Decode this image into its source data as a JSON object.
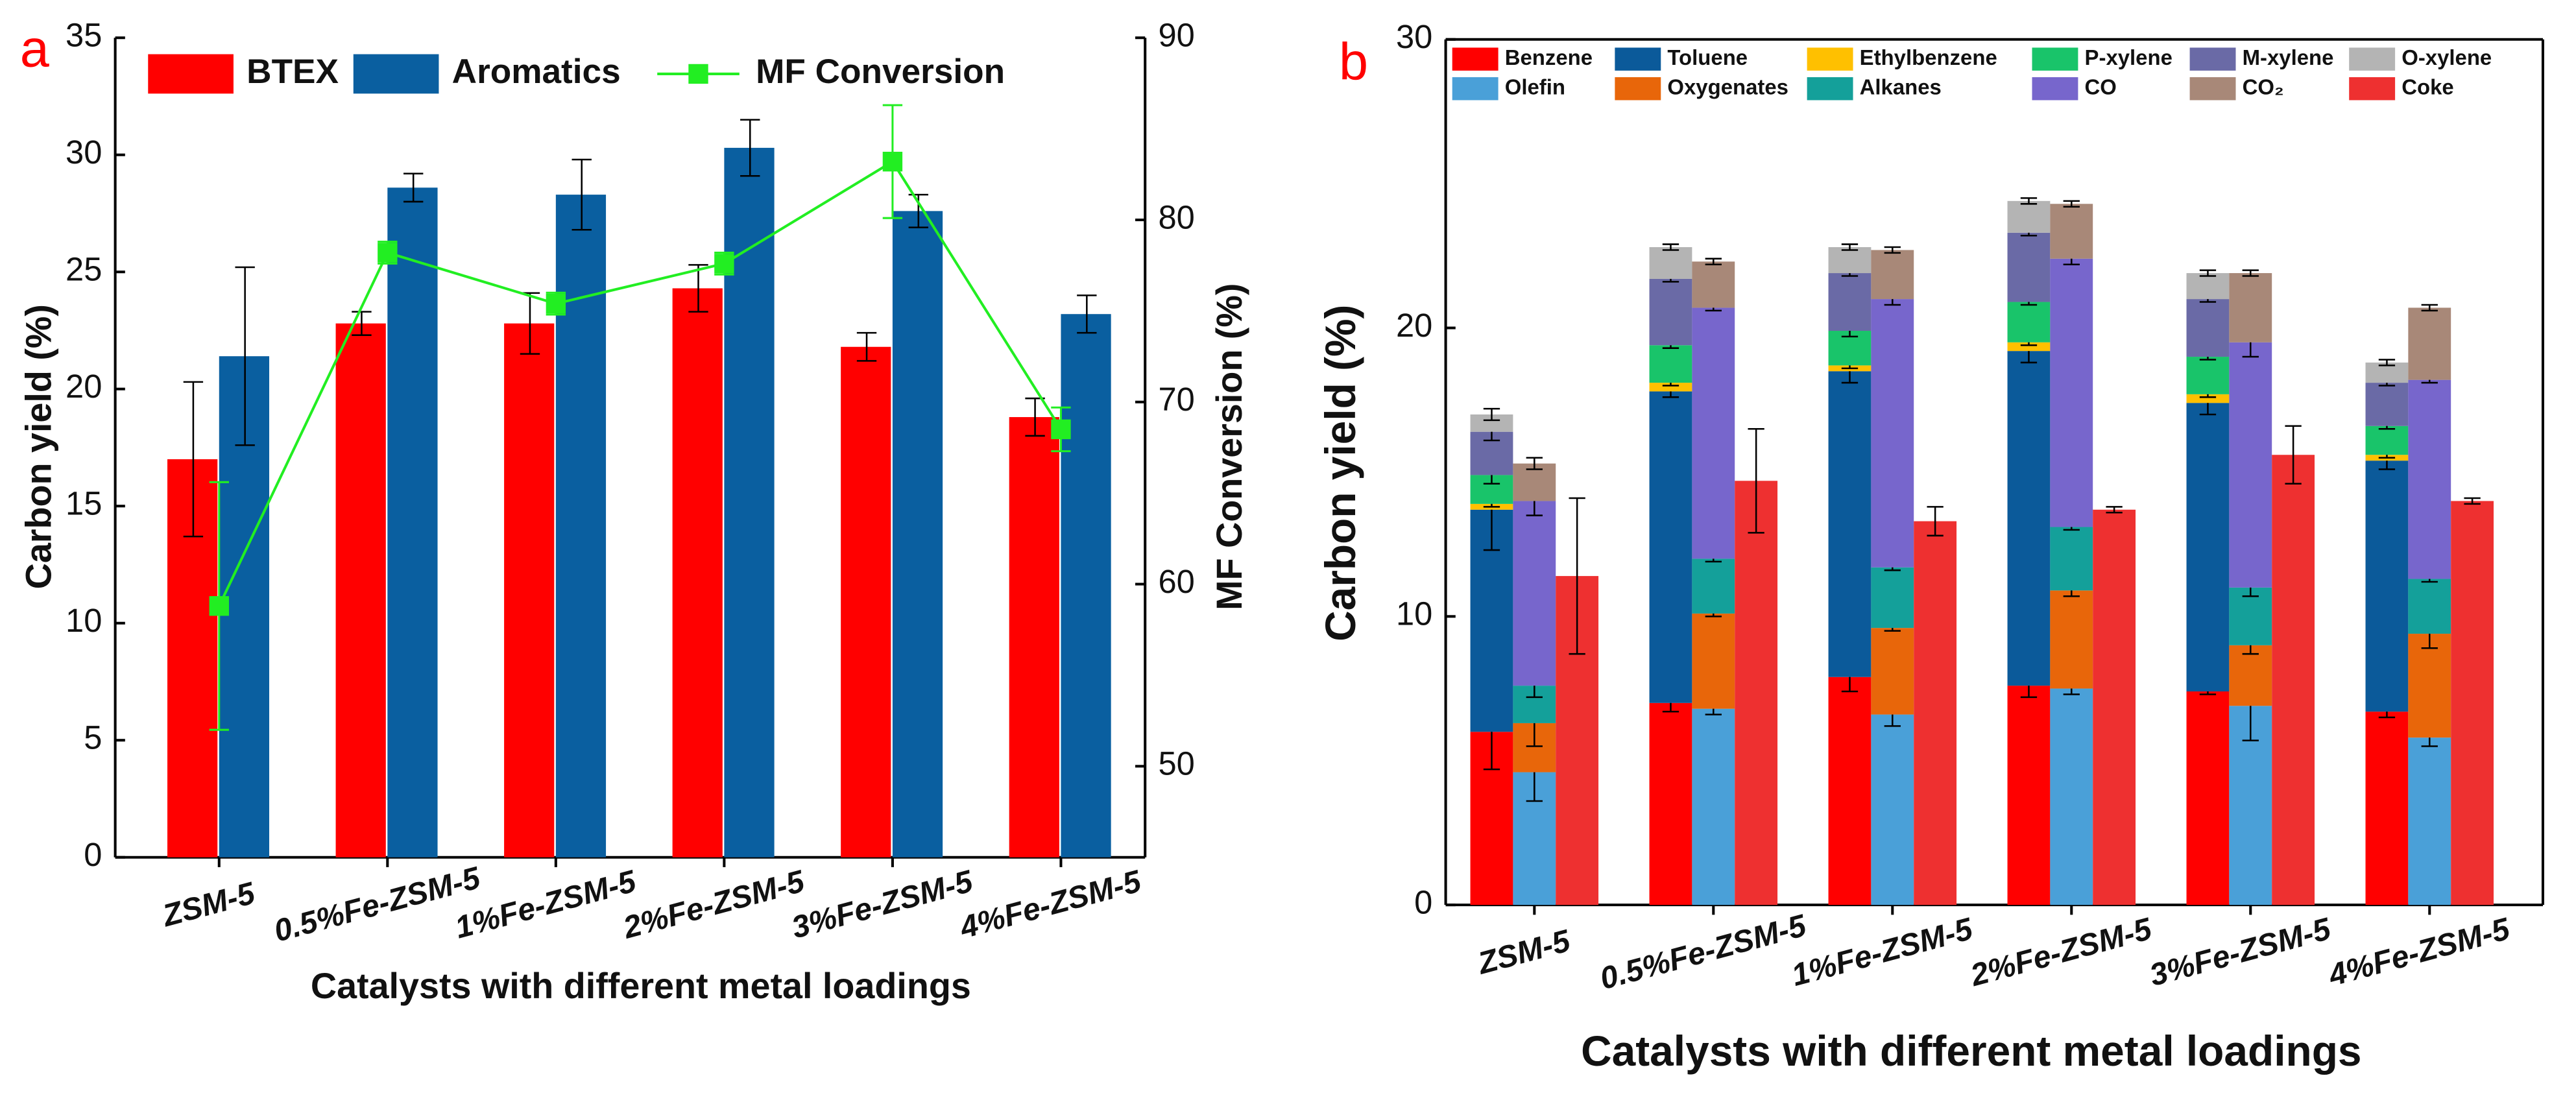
{
  "chart_data": [
    {
      "type": "bar",
      "panel_label": "a",
      "x_label": "Catalysts with different metal loadings",
      "y_label": "Carbon yield (%)",
      "y2_label": "MF Conversion (%)",
      "categories": [
        "ZSM-5",
        "0.5%Fe-ZSM-5",
        "1%Fe-ZSM-5",
        "2%Fe-ZSM-5",
        "3%Fe-ZSM-5",
        "4%Fe-ZSM-5"
      ],
      "ylim": [
        0,
        35
      ],
      "yticks": [
        0,
        5,
        10,
        15,
        20,
        25,
        30,
        35
      ],
      "y2lim": [
        45,
        90
      ],
      "y2ticks": [
        50,
        60,
        70,
        80,
        90
      ],
      "legend": "top-left",
      "series": [
        {
          "name": "BTEX",
          "color": "#ff0000",
          "values": [
            17.0,
            22.8,
            22.8,
            24.3,
            21.8,
            18.8
          ],
          "errors": [
            3.3,
            0.5,
            1.3,
            1.0,
            0.6,
            0.8
          ]
        },
        {
          "name": "Aromatics",
          "color": "#0a5fa0",
          "values": [
            21.4,
            28.6,
            28.3,
            30.3,
            27.6,
            23.2
          ],
          "errors": [
            3.8,
            0.6,
            1.5,
            1.2,
            0.7,
            0.8
          ]
        },
        {
          "name": "MF Conversion",
          "color": "#22ee22",
          "kind": "line",
          "axis": "y2",
          "values": [
            58.8,
            78.2,
            75.4,
            77.6,
            83.2,
            68.5
          ],
          "errors": [
            6.8,
            0.6,
            0.6,
            0.6,
            3.1,
            1.2
          ]
        }
      ]
    },
    {
      "type": "stacked_bar",
      "panel_label": "b",
      "x_label": "Catalysts with different metal loadings",
      "y_label": "Carbon yield (%)",
      "categories": [
        "ZSM-5",
        "0.5%Fe-ZSM-5",
        "1%Fe-ZSM-5",
        "2%Fe-ZSM-5",
        "3%Fe-ZSM-5",
        "4%Fe-ZSM-5"
      ],
      "ylim": [
        0,
        30
      ],
      "yticks": [
        0,
        10,
        20,
        30
      ],
      "legend": "top",
      "series": [
        {
          "name": "Benzene",
          "color": "#ff0000",
          "stack": 0,
          "values": [
            6.0,
            7.0,
            7.9,
            7.6,
            7.4,
            6.7
          ],
          "errors": [
            1.3,
            0.3,
            0.5,
            0.4,
            0.1,
            0.2
          ]
        },
        {
          "name": "Toluene",
          "color": "#0b5a9a",
          "stack": 0,
          "values": [
            7.7,
            10.8,
            10.6,
            11.6,
            10.0,
            8.7
          ],
          "errors": [
            1.4,
            0.2,
            0.4,
            0.4,
            0.4,
            0.3
          ]
        },
        {
          "name": "Ethylbenzene",
          "color": "#ffc000",
          "stack": 0,
          "values": [
            0.2,
            0.3,
            0.2,
            0.3,
            0.3,
            0.2
          ],
          "errors": [
            0.1,
            0.1,
            0.1,
            0.1,
            0.1,
            0.1
          ]
        },
        {
          "name": "P-xylene",
          "color": "#19c46a",
          "stack": 0,
          "values": [
            1.0,
            1.3,
            1.2,
            1.4,
            1.3,
            1.0
          ],
          "errors": [
            0.3,
            0.1,
            0.2,
            0.1,
            0.1,
            0.1
          ]
        },
        {
          "name": "M-xylene",
          "color": "#6a6aa6",
          "stack": 0,
          "values": [
            1.5,
            2.3,
            2.0,
            2.4,
            2.0,
            1.5
          ],
          "errors": [
            0.3,
            0.1,
            0.1,
            0.1,
            0.1,
            0.1
          ]
        },
        {
          "name": "O-xylene",
          "color": "#b4b4b4",
          "stack": 0,
          "values": [
            0.6,
            1.1,
            0.9,
            1.1,
            0.9,
            0.7
          ],
          "errors": [
            0.2,
            0.1,
            0.1,
            0.1,
            0.1,
            0.1
          ]
        },
        {
          "name": "Olefin",
          "color": "#4aa0d8",
          "stack": 1,
          "values": [
            4.6,
            6.8,
            6.6,
            7.5,
            6.9,
            5.8
          ],
          "errors": [
            1.0,
            0.2,
            0.4,
            0.2,
            1.2,
            0.3
          ]
        },
        {
          "name": "Oxygenates",
          "color": "#e8660a",
          "stack": 1,
          "values": [
            1.7,
            3.3,
            3.0,
            3.4,
            2.1,
            3.6
          ],
          "errors": [
            0.8,
            0.1,
            0.1,
            0.2,
            0.3,
            0.5
          ]
        },
        {
          "name": "Alkanes",
          "color": "#14a09a",
          "stack": 1,
          "values": [
            1.3,
            1.9,
            2.1,
            2.2,
            2.0,
            1.9
          ],
          "errors": [
            0.4,
            0.1,
            0.1,
            0.1,
            0.3,
            0.1
          ]
        },
        {
          "name": "CO",
          "color": "#7766cc",
          "stack": 1,
          "values": [
            6.4,
            8.7,
            9.3,
            9.3,
            8.5,
            6.9
          ],
          "errors": [
            0.5,
            0.1,
            0.2,
            0.2,
            0.5,
            0.1
          ]
        },
        {
          "name": "CO₂",
          "color": "#a88878",
          "stack": 1,
          "values": [
            1.3,
            1.6,
            1.7,
            1.9,
            2.4,
            2.5
          ],
          "errors": [
            0.2,
            0.1,
            0.1,
            0.1,
            0.1,
            0.1
          ]
        },
        {
          "name": "Coke",
          "color": "#ee3030",
          "stack": 2,
          "values": [
            11.4,
            14.7,
            13.3,
            13.7,
            15.6,
            14.0
          ],
          "errors": [
            2.7,
            1.8,
            0.5,
            0.1,
            1.0,
            0.1
          ]
        }
      ]
    }
  ]
}
